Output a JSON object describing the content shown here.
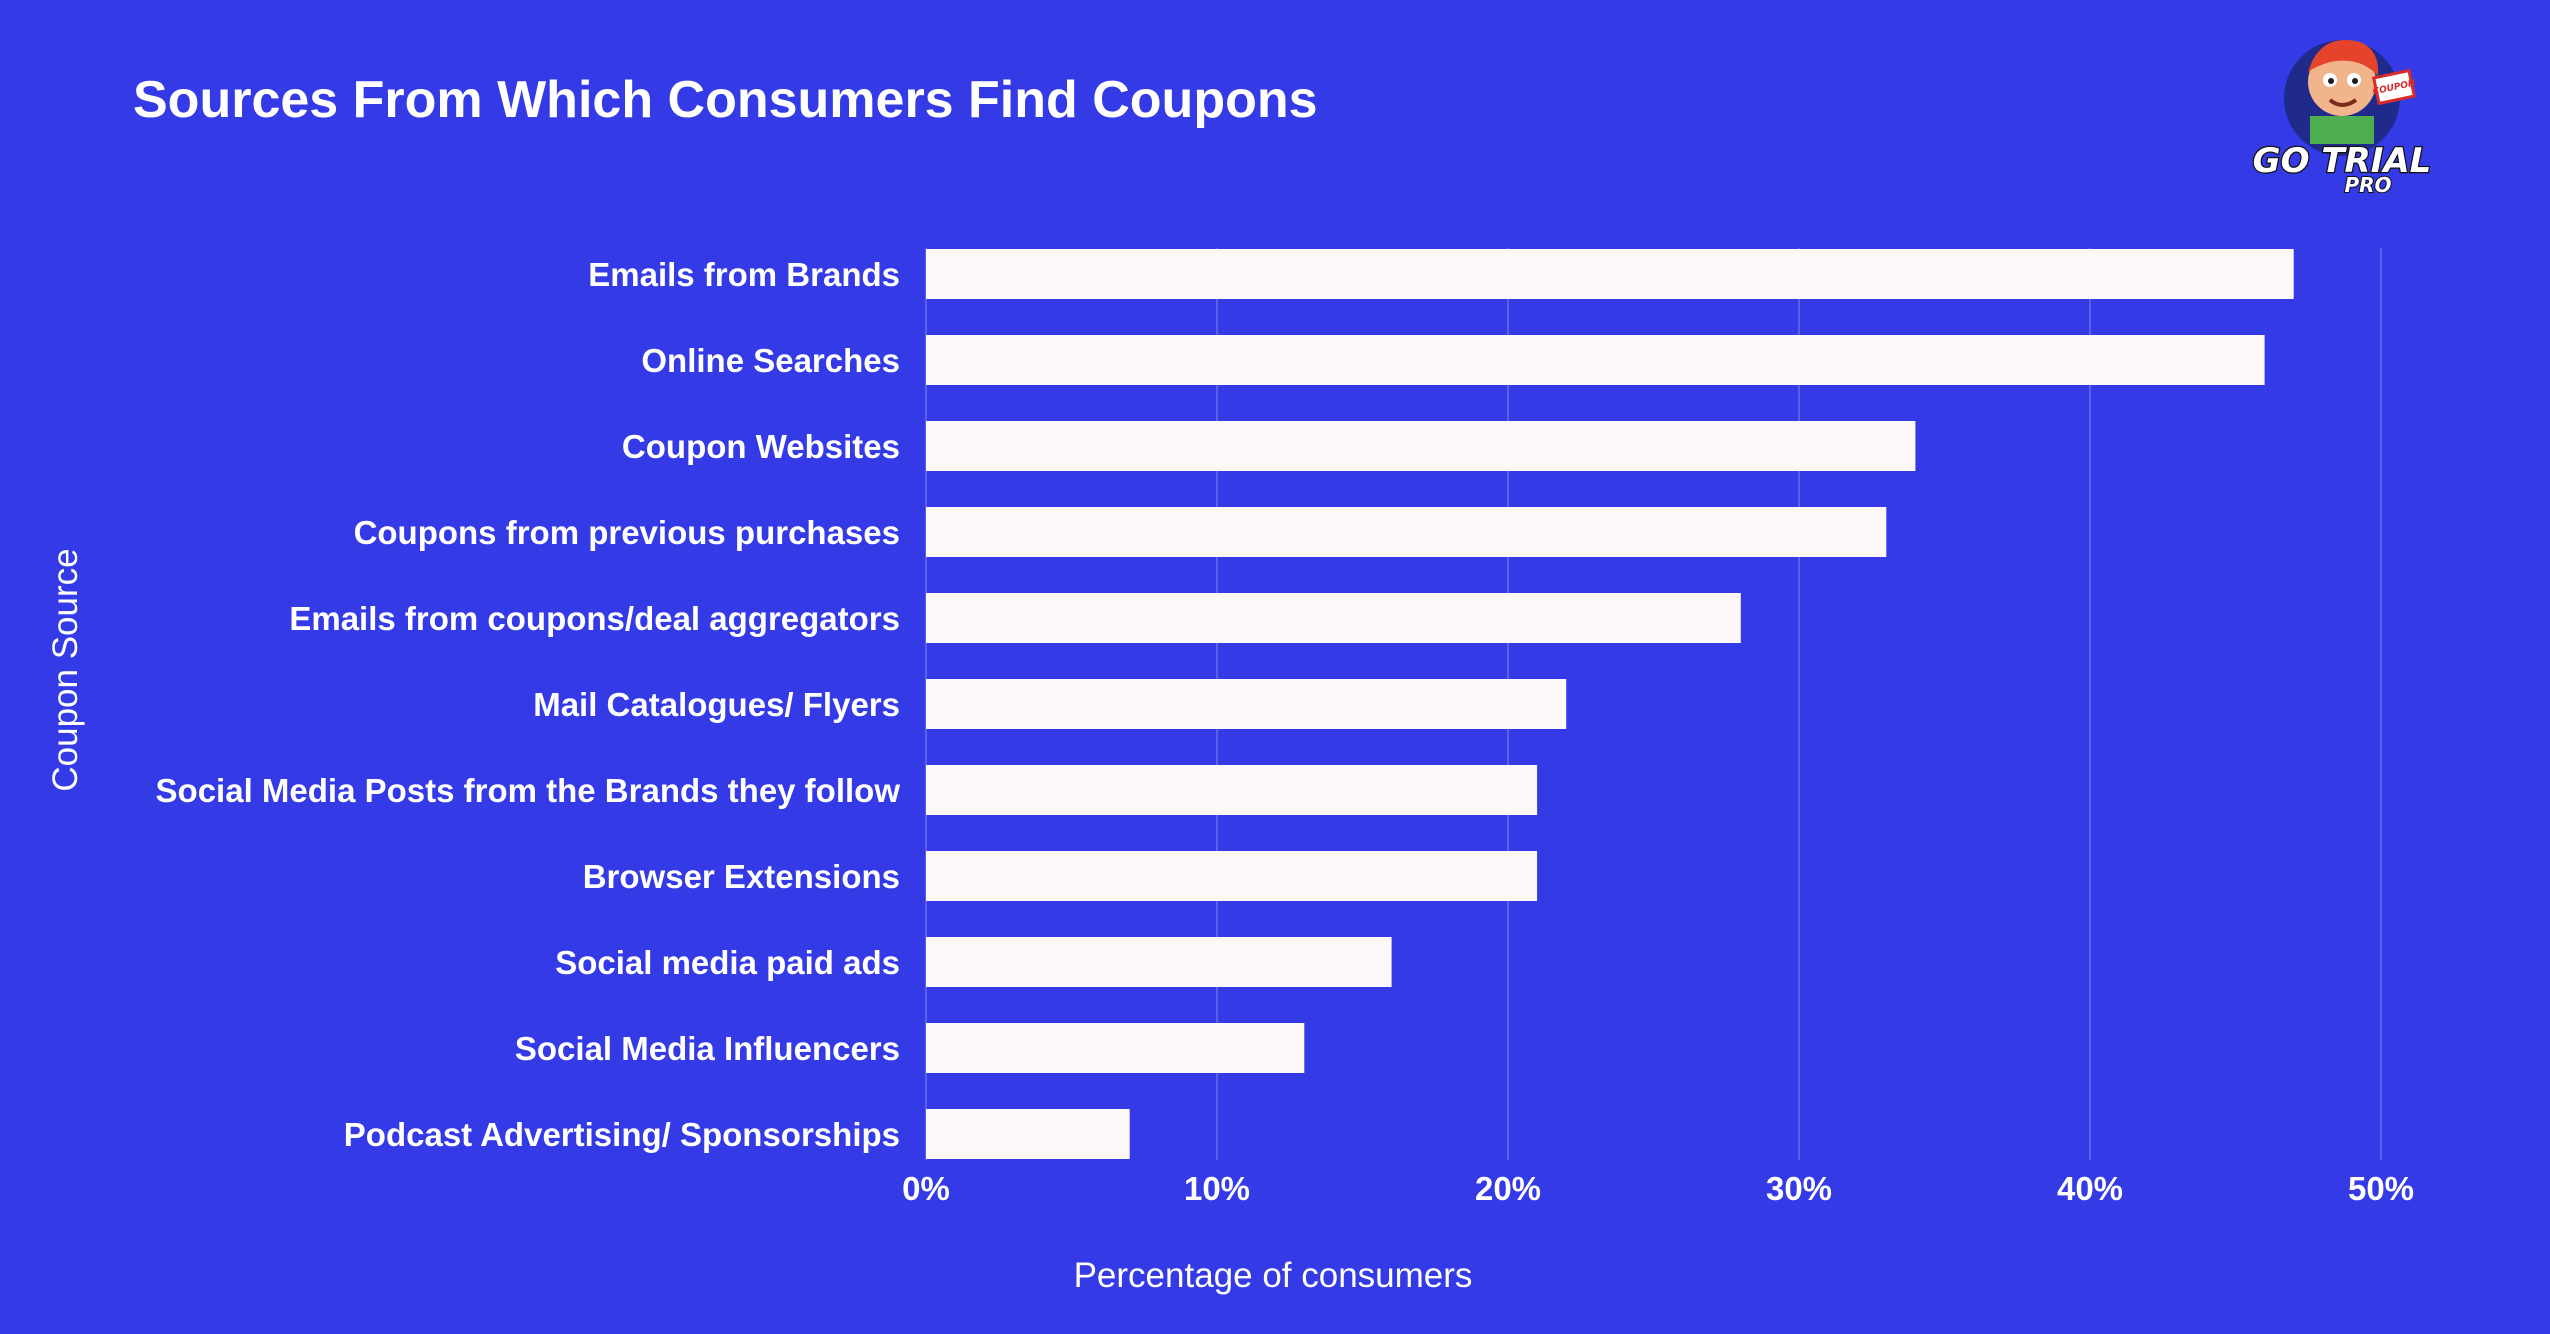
{
  "chart_data": {
    "type": "bar",
    "orientation": "horizontal",
    "title": "Sources From Which Consumers Find Coupons",
    "xlabel": "Percentage of consumers",
    "ylabel": "Coupon Source",
    "xlim": [
      0,
      50
    ],
    "xticks": [
      "0%",
      "10%",
      "20%",
      "30%",
      "40%",
      "50%"
    ],
    "grid": true,
    "categories": [
      "Emails from Brands",
      "Online Searches",
      "Coupon Websites",
      "Coupons from previous purchases",
      "Emails from coupons/deal aggregators",
      "Mail Catalogues/ Flyers",
      "Social Media Posts from the Brands they follow",
      "Browser Extensions",
      "Social media paid ads",
      "Social Media Influencers",
      "Podcast Advertising/ Sponsorships"
    ],
    "values": [
      47,
      46,
      34,
      33,
      28,
      22,
      21,
      21,
      16,
      13,
      7
    ]
  },
  "logo": {
    "line1": "GO TRIAL",
    "line2": "PRO",
    "badge": "COUPON"
  },
  "colors": {
    "background": "#343be6",
    "bar": "#fdf7f7",
    "text": "#ffffff"
  }
}
